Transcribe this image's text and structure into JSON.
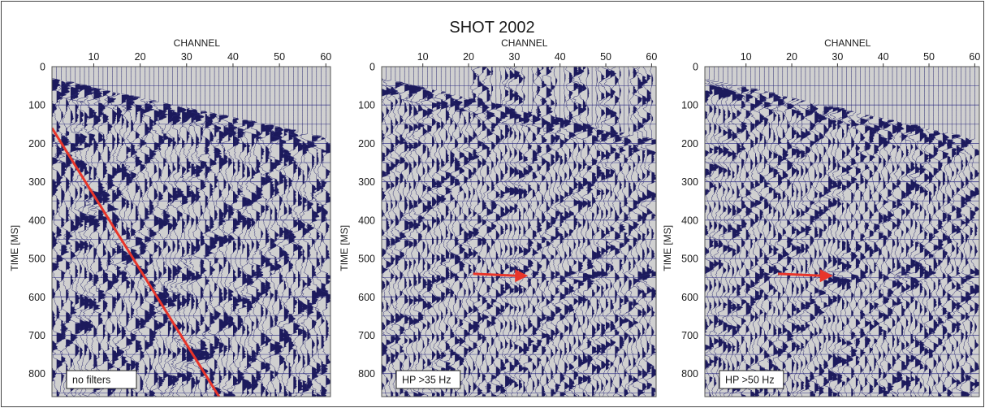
{
  "figure": {
    "title": "SHOT 2002"
  },
  "chart_data": [
    {
      "type": "seismic-wiggle",
      "title": "",
      "xlabel": "CHANNEL",
      "ylabel": "TIME [MS]",
      "x_ticks": [
        10,
        20,
        30,
        40,
        50,
        60
      ],
      "y_ticks": [
        0,
        100,
        200,
        300,
        400,
        500,
        600,
        700,
        800
      ],
      "xlim": [
        1,
        61
      ],
      "ylim": [
        0,
        860
      ],
      "channels": 60,
      "box_label": "no filters",
      "annotation": {
        "kind": "line",
        "color": "#e8352a",
        "from": {
          "channel": 1,
          "time": 160
        },
        "to": {
          "channel": 37,
          "time": 860
        }
      }
    },
    {
      "type": "seismic-wiggle",
      "title": "",
      "xlabel": "CHANNEL",
      "ylabel": "TIME [MS]",
      "x_ticks": [
        10,
        20,
        30,
        40,
        50,
        60
      ],
      "y_ticks": [
        0,
        100,
        200,
        300,
        400,
        500,
        600,
        700,
        800
      ],
      "xlim": [
        1,
        61
      ],
      "ylim": [
        0,
        860
      ],
      "channels": 60,
      "box_label": "HP >35 Hz",
      "annotation": {
        "kind": "arrow",
        "color": "#e8352a",
        "from": {
          "channel": 21,
          "time": 540
        },
        "to": {
          "channel": 33,
          "time": 545
        }
      }
    },
    {
      "type": "seismic-wiggle",
      "title": "",
      "xlabel": "CHANNEL",
      "ylabel": "TIME [MS]",
      "x_ticks": [
        10,
        20,
        30,
        40,
        50,
        60
      ],
      "y_ticks": [
        0,
        100,
        200,
        300,
        400,
        500,
        600,
        700,
        800
      ],
      "xlim": [
        1,
        61
      ],
      "ylim": [
        0,
        860
      ],
      "channels": 60,
      "box_label": "HP >50 Hz",
      "annotation": {
        "kind": "arrow",
        "color": "#e8352a",
        "from": {
          "channel": 17,
          "time": 540
        },
        "to": {
          "channel": 29,
          "time": 545
        }
      }
    }
  ],
  "colors": {
    "trace_fill": "#1c1a5c",
    "trace_line": "#2a2870",
    "panel_bg": "#d0d0d0",
    "grid": "#3a3a8c",
    "annotation": "#e8352a"
  }
}
